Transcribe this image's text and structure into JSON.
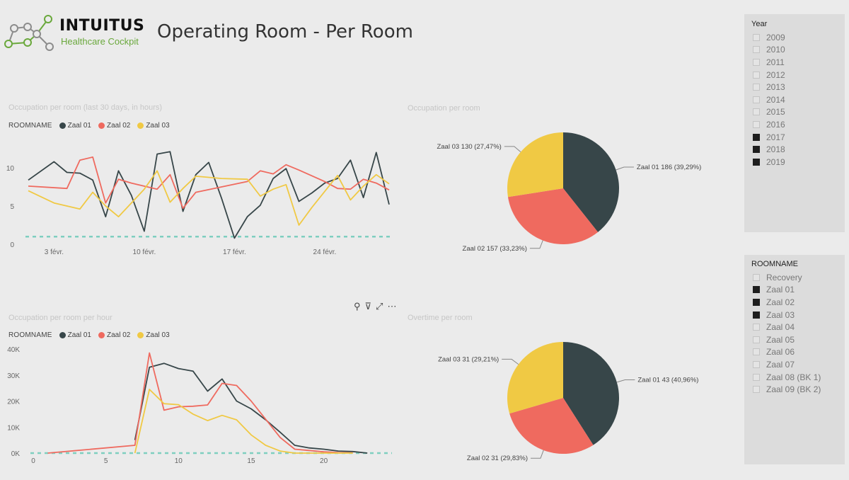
{
  "header": {
    "brand": "INTUITUS",
    "brand_sub": "Healthcare Cockpit",
    "page_title": "Operating Room - Per Room"
  },
  "visual_titles": {
    "line_days": "Occupation per room (last 30 days, in hours)",
    "pie_occupation": "Occupation per room",
    "line_hours": "Occupation per room per hour",
    "pie_overtime": "Overtime per room"
  },
  "legend": {
    "title": "ROOMNAME",
    "items": [
      {
        "name": "Zaal 01",
        "color": "#374649"
      },
      {
        "name": "Zaal 02",
        "color": "#ef6a5f"
      },
      {
        "name": "Zaal 03",
        "color": "#f0c944"
      }
    ]
  },
  "toolbar": {
    "pin_icon": "⚲",
    "filter_icon": "⊽",
    "focus_icon": "⤢",
    "more_icon": "⋯"
  },
  "slicer_year": {
    "title": "Year",
    "items": [
      {
        "label": "2009",
        "selected": false
      },
      {
        "label": "2010",
        "selected": false
      },
      {
        "label": "2011",
        "selected": false
      },
      {
        "label": "2012",
        "selected": false
      },
      {
        "label": "2013",
        "selected": false
      },
      {
        "label": "2014",
        "selected": false
      },
      {
        "label": "2015",
        "selected": false
      },
      {
        "label": "2016",
        "selected": false
      },
      {
        "label": "2017",
        "selected": true
      },
      {
        "label": "2018",
        "selected": true
      },
      {
        "label": "2019",
        "selected": true
      }
    ]
  },
  "slicer_room": {
    "title": "ROOMNAME",
    "items": [
      {
        "label": "Recovery",
        "selected": false
      },
      {
        "label": "Zaal 01",
        "selected": true
      },
      {
        "label": "Zaal 02",
        "selected": true
      },
      {
        "label": "Zaal 03",
        "selected": true
      },
      {
        "label": "Zaal 04",
        "selected": false
      },
      {
        "label": "Zaal 05",
        "selected": false
      },
      {
        "label": "Zaal 06",
        "selected": false
      },
      {
        "label": "Zaal 07",
        "selected": false
      },
      {
        "label": "Zaal 08 (BK 1)",
        "selected": false
      },
      {
        "label": "Zaal 09 (BK 2)",
        "selected": false
      }
    ]
  },
  "chart_data": [
    {
      "id": "line_days",
      "type": "line",
      "title": "Occupation per room (last 30 days, in hours)",
      "x_tick_labels": [
        "3 févr.",
        "10 févr.",
        "17 févr.",
        "24 févr."
      ],
      "x_tick_positions": [
        2,
        9,
        16,
        23
      ],
      "ylim": [
        0,
        12.5
      ],
      "y_ticks": [
        0,
        5,
        10
      ],
      "reference_line": 1,
      "series": [
        {
          "name": "Zaal 01",
          "color": "#374649",
          "points": [
            [
              0,
              8.4
            ],
            [
              2,
              10.8
            ],
            [
              3,
              9.4
            ],
            [
              4,
              9.3
            ],
            [
              5,
              8.4
            ],
            [
              6,
              3.6
            ],
            [
              7,
              9.6
            ],
            [
              8,
              6.4
            ],
            [
              9,
              1.7
            ],
            [
              10,
              11.8
            ],
            [
              11,
              12.1
            ],
            [
              12,
              4.3
            ],
            [
              13,
              9.1
            ],
            [
              14,
              10.7
            ],
            [
              15,
              6.0
            ],
            [
              16,
              0.8
            ],
            [
              17,
              3.6
            ],
            [
              18,
              5.1
            ],
            [
              19,
              8.6
            ],
            [
              20,
              9.9
            ],
            [
              21,
              5.6
            ],
            [
              22,
              6.7
            ],
            [
              23,
              8.0
            ],
            [
              24,
              8.6
            ],
            [
              25,
              11.0
            ],
            [
              26,
              6.1
            ],
            [
              27,
              12.0
            ],
            [
              28,
              5.2
            ]
          ]
        },
        {
          "name": "Zaal 02",
          "color": "#ef6a5f",
          "points": [
            [
              0,
              7.6
            ],
            [
              3,
              7.3
            ],
            [
              4,
              11.0
            ],
            [
              5,
              11.4
            ],
            [
              6,
              5.4
            ],
            [
              7,
              8.5
            ],
            [
              8,
              8.0
            ],
            [
              10,
              7.2
            ],
            [
              11,
              9.1
            ],
            [
              12,
              4.7
            ],
            [
              13,
              6.8
            ],
            [
              15,
              7.5
            ],
            [
              17,
              8.2
            ],
            [
              18,
              9.6
            ],
            [
              19,
              9.2
            ],
            [
              20,
              10.4
            ],
            [
              21,
              9.7
            ],
            [
              23,
              8.2
            ],
            [
              24,
              7.3
            ],
            [
              25,
              7.2
            ],
            [
              26,
              8.5
            ],
            [
              27,
              8.0
            ],
            [
              28,
              7.1
            ]
          ]
        },
        {
          "name": "Zaal 03",
          "color": "#f0c944",
          "points": [
            [
              0,
              7.0
            ],
            [
              2,
              5.4
            ],
            [
              4,
              4.6
            ],
            [
              5,
              6.8
            ],
            [
              6,
              5.0
            ],
            [
              7,
              3.6
            ],
            [
              8,
              5.4
            ],
            [
              9,
              7.2
            ],
            [
              10,
              9.6
            ],
            [
              11,
              5.5
            ],
            [
              12,
              7.3
            ],
            [
              13,
              8.9
            ],
            [
              15,
              8.6
            ],
            [
              17,
              8.5
            ],
            [
              18,
              6.3
            ],
            [
              19,
              7.2
            ],
            [
              20,
              7.8
            ],
            [
              21,
              2.5
            ],
            [
              22,
              4.8
            ],
            [
              24,
              9.0
            ],
            [
              25,
              5.8
            ],
            [
              26,
              7.6
            ],
            [
              27,
              9.1
            ],
            [
              28,
              7.9
            ]
          ]
        }
      ]
    },
    {
      "id": "line_hours",
      "type": "line",
      "title": "Occupation per room per hour",
      "xlim": [
        0,
        24.5
      ],
      "x_ticks": [
        0,
        5,
        10,
        15,
        20
      ],
      "ylim": [
        0,
        40000
      ],
      "y_ticks": [
        0,
        10000,
        20000,
        30000,
        40000
      ],
      "y_tick_labels": [
        "0K",
        "10K",
        "20K",
        "30K",
        "40K"
      ],
      "reference_line": 0,
      "series": [
        {
          "name": "Zaal 01",
          "color": "#374649",
          "points": [
            [
              7,
              5000
            ],
            [
              8,
              33000
            ],
            [
              9,
              34500
            ],
            [
              10,
              32500
            ],
            [
              11,
              31500
            ],
            [
              12,
              23800
            ],
            [
              13,
              28500
            ],
            [
              14,
              20000
            ],
            [
              15,
              17000
            ],
            [
              16,
              12800
            ],
            [
              17,
              8000
            ],
            [
              18,
              3000
            ],
            [
              19,
              2000
            ],
            [
              20,
              1500
            ],
            [
              21,
              800
            ],
            [
              22,
              600
            ],
            [
              23,
              0
            ]
          ]
        },
        {
          "name": "Zaal 02",
          "color": "#ef6a5f",
          "points": [
            [
              1,
              0
            ],
            [
              7,
              3000
            ],
            [
              8,
              38500
            ],
            [
              9,
              16500
            ],
            [
              10,
              17800
            ],
            [
              11,
              18000
            ],
            [
              12,
              18500
            ],
            [
              13,
              26800
            ],
            [
              14,
              26000
            ],
            [
              15,
              20000
            ],
            [
              16,
              13000
            ],
            [
              17,
              6000
            ],
            [
              18,
              1500
            ],
            [
              19,
              1000
            ],
            [
              20,
              500
            ],
            [
              21,
              200
            ],
            [
              22,
              100
            ]
          ]
        },
        {
          "name": "Zaal 03",
          "color": "#f0c944",
          "points": [
            [
              7,
              0
            ],
            [
              8,
              24500
            ],
            [
              9,
              19000
            ],
            [
              10,
              18600
            ],
            [
              11,
              15000
            ],
            [
              12,
              12500
            ],
            [
              13,
              14500
            ],
            [
              14,
              12800
            ],
            [
              15,
              7000
            ],
            [
              16,
              3000
            ],
            [
              17,
              800
            ],
            [
              18,
              0
            ],
            [
              19,
              0
            ],
            [
              20,
              0
            ],
            [
              21,
              0
            ],
            [
              22,
              0
            ]
          ]
        }
      ]
    },
    {
      "id": "pie_occupation",
      "type": "pie",
      "title": "Occupation per room",
      "slices": [
        {
          "name": "Zaal 01",
          "value": 186,
          "label": "Zaal 01 186 (39,29%)",
          "color": "#374649"
        },
        {
          "name": "Zaal 02",
          "value": 157,
          "label": "Zaal 02 157 (33,23%)",
          "color": "#ef6a5f"
        },
        {
          "name": "Zaal 03",
          "value": 130,
          "label": "Zaal 03 130 (27,47%)",
          "color": "#f0c944"
        }
      ]
    },
    {
      "id": "pie_overtime",
      "type": "pie",
      "title": "Overtime per room",
      "slices": [
        {
          "name": "Zaal 01",
          "value": 43,
          "label": "Zaal 01 43 (40,96%)",
          "color": "#374649"
        },
        {
          "name": "Zaal 02",
          "value": 31,
          "label": "Zaal 02 31 (29,83%)",
          "color": "#ef6a5f"
        },
        {
          "name": "Zaal 03",
          "value": 31,
          "label": "Zaal 03 31 (29,21%)",
          "color": "#f0c944"
        }
      ]
    }
  ]
}
